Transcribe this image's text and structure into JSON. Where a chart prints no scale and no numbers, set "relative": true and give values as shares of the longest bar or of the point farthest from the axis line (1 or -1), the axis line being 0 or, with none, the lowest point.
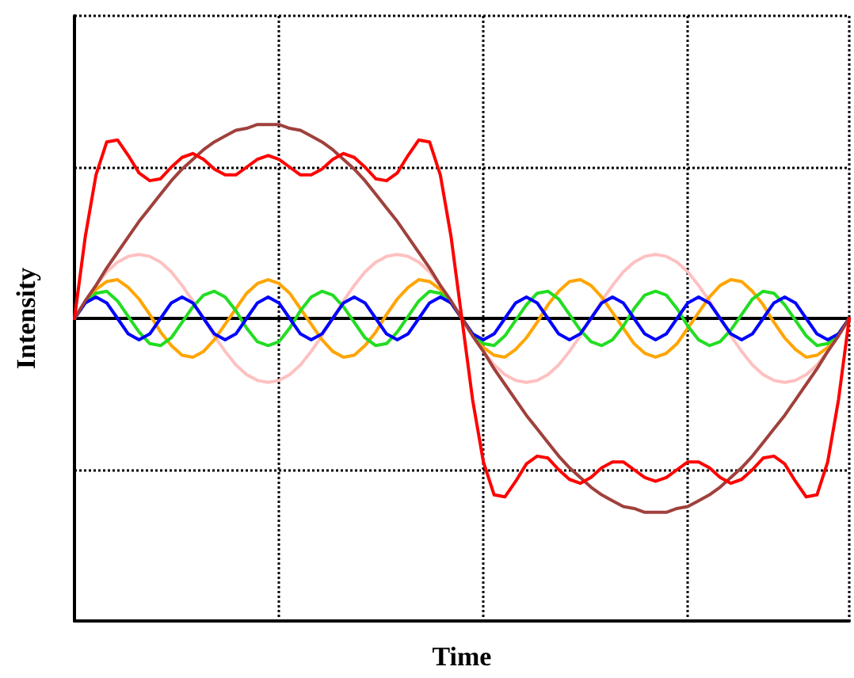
{
  "chart_data": {
    "type": "line",
    "relative": true,
    "xlabel": "Time",
    "ylabel": "Intensity",
    "grid": true,
    "marker": "none",
    "line_style": "solid",
    "categories": [
      null,
      null,
      null,
      null,
      null,
      null,
      null,
      null,
      null,
      null,
      null,
      null,
      null,
      null,
      null,
      null,
      null,
      null,
      null,
      null,
      null,
      null,
      null,
      null,
      null,
      null,
      null,
      null,
      null,
      null,
      null,
      null,
      null,
      null,
      null,
      null,
      null,
      null,
      null,
      null,
      null,
      null,
      null,
      null,
      null,
      null,
      null,
      null,
      null,
      null,
      null,
      null,
      null,
      null,
      null,
      null,
      null,
      null,
      null,
      null,
      null,
      null,
      null,
      null,
      null,
      null,
      null,
      null,
      null,
      null,
      null,
      null,
      null
    ],
    "series": [
      {
        "color": "#ffc0c0",
        "values": [
          0,
          0.09,
          0.17,
          0.24,
          0.29,
          0.32,
          0.33,
          0.32,
          0.29,
          0.24,
          0.17,
          0.09,
          0,
          -0.09,
          -0.17,
          -0.24,
          -0.29,
          -0.32,
          -0.33,
          -0.32,
          -0.29,
          -0.24,
          -0.17,
          -0.09,
          0,
          0.09,
          0.17,
          0.24,
          0.29,
          0.32,
          0.33,
          0.32,
          0.29,
          0.24,
          0.17,
          0.09,
          0,
          -0.09,
          -0.17,
          -0.24,
          -0.29,
          -0.32,
          -0.33,
          -0.32,
          -0.29,
          -0.24,
          -0.17,
          -0.09,
          0,
          0.09,
          0.17,
          0.24,
          0.29,
          0.32,
          0.33,
          0.32,
          0.29,
          0.24,
          0.17,
          0.09,
          0,
          -0.09,
          -0.17,
          -0.24,
          -0.29,
          -0.32,
          -0.33,
          -0.32,
          -0.29,
          -0.24,
          -0.17,
          -0.09,
          0
        ]
      },
      {
        "color": "#ffa500",
        "values": [
          0,
          0.08,
          0.15,
          0.19,
          0.2,
          0.16,
          0.1,
          0.02,
          -0.07,
          -0.14,
          -0.19,
          -0.2,
          -0.17,
          -0.11,
          -0.03,
          0.05,
          0.13,
          0.18,
          0.2,
          0.18,
          0.13,
          0.05,
          -0.03,
          -0.11,
          -0.17,
          -0.2,
          -0.19,
          -0.14,
          -0.07,
          0.02,
          0.1,
          0.16,
          0.2,
          0.19,
          0.15,
          0.08,
          0,
          -0.08,
          -0.15,
          -0.19,
          -0.2,
          -0.16,
          -0.1,
          -0.02,
          0.07,
          0.14,
          0.19,
          0.2,
          0.17,
          0.11,
          0.03,
          -0.05,
          -0.13,
          -0.18,
          -0.2,
          -0.18,
          -0.13,
          -0.05,
          0.03,
          0.11,
          0.17,
          0.2,
          0.19,
          0.14,
          0.07,
          -0.02,
          -0.1,
          -0.16,
          -0.2,
          -0.19,
          -0.15,
          -0.08,
          0
        ]
      },
      {
        "color": "#22dd22",
        "values": [
          0,
          0.08,
          0.13,
          0.14,
          0.09,
          0.01,
          -0.07,
          -0.13,
          -0.14,
          -0.1,
          -0.02,
          0.06,
          0.12,
          0.14,
          0.11,
          0.04,
          -0.05,
          -0.12,
          -0.14,
          -0.12,
          -0.05,
          0.04,
          0.11,
          0.14,
          0.12,
          0.06,
          -0.02,
          -0.1,
          -0.14,
          -0.13,
          -0.07,
          0.01,
          0.09,
          0.14,
          0.13,
          0.08,
          0,
          -0.08,
          -0.13,
          -0.14,
          -0.09,
          -0.01,
          0.07,
          0.13,
          0.14,
          0.1,
          0.02,
          -0.06,
          -0.12,
          -0.14,
          -0.11,
          -0.04,
          0.05,
          0.12,
          0.14,
          0.12,
          0.05,
          -0.04,
          -0.11,
          -0.14,
          -0.12,
          -0.06,
          0.02,
          0.1,
          0.14,
          0.13,
          0.07,
          -0.01,
          -0.09,
          -0.14,
          -0.13,
          -0.08,
          0
        ]
      },
      {
        "color": "#0000ff",
        "values": [
          0,
          0.08,
          0.11,
          0.08,
          0,
          -0.08,
          -0.11,
          -0.08,
          0,
          0.08,
          0.11,
          0.08,
          0,
          -0.08,
          -0.11,
          -0.08,
          0,
          0.08,
          0.11,
          0.08,
          0,
          -0.08,
          -0.11,
          -0.08,
          0,
          0.08,
          0.11,
          0.08,
          0,
          -0.08,
          -0.11,
          -0.08,
          0,
          0.08,
          0.11,
          0.08,
          0,
          -0.08,
          -0.11,
          -0.08,
          0,
          0.08,
          0.11,
          0.08,
          0,
          -0.08,
          -0.11,
          -0.08,
          0,
          0.08,
          0.11,
          0.08,
          0,
          -0.08,
          -0.11,
          -0.08,
          0,
          0.08,
          0.11,
          0.08,
          0,
          -0.08,
          -0.11,
          -0.08,
          0,
          0.08,
          0.11,
          0.08,
          0,
          -0.08,
          -0.11,
          -0.08,
          0
        ]
      },
      {
        "color": "#a0403c",
        "values": [
          0,
          0.09,
          0.17,
          0.26,
          0.34,
          0.42,
          0.5,
          0.57,
          0.64,
          0.71,
          0.77,
          0.82,
          0.87,
          0.91,
          0.94,
          0.97,
          0.98,
          1,
          1,
          1,
          0.98,
          0.97,
          0.94,
          0.91,
          0.87,
          0.82,
          0.77,
          0.71,
          0.64,
          0.57,
          0.5,
          0.42,
          0.34,
          0.26,
          0.17,
          0.09,
          0,
          -0.09,
          -0.17,
          -0.26,
          -0.34,
          -0.42,
          -0.5,
          -0.57,
          -0.64,
          -0.71,
          -0.77,
          -0.82,
          -0.87,
          -0.91,
          -0.94,
          -0.97,
          -0.98,
          -1,
          -1,
          -1,
          -0.98,
          -0.97,
          -0.94,
          -0.91,
          -0.87,
          -0.82,
          -0.77,
          -0.71,
          -0.64,
          -0.57,
          -0.5,
          -0.42,
          -0.34,
          -0.26,
          -0.17,
          -0.09,
          0
        ]
      },
      {
        "color": "#ff0000",
        "values": [
          0,
          0.42,
          0.74,
          0.91,
          0.92,
          0.84,
          0.75,
          0.71,
          0.72,
          0.78,
          0.83,
          0.85,
          0.82,
          0.77,
          0.74,
          0.74,
          0.78,
          0.82,
          0.84,
          0.82,
          0.78,
          0.74,
          0.74,
          0.77,
          0.82,
          0.85,
          0.83,
          0.78,
          0.72,
          0.71,
          0.75,
          0.84,
          0.92,
          0.91,
          0.74,
          0.42,
          0,
          -0.42,
          -0.74,
          -0.91,
          -0.92,
          -0.84,
          -0.75,
          -0.71,
          -0.72,
          -0.78,
          -0.83,
          -0.85,
          -0.82,
          -0.77,
          -0.74,
          -0.74,
          -0.78,
          -0.82,
          -0.84,
          -0.82,
          -0.78,
          -0.74,
          -0.74,
          -0.77,
          -0.82,
          -0.85,
          -0.83,
          -0.78,
          -0.72,
          -0.71,
          -0.75,
          -0.84,
          -0.92,
          -0.91,
          -0.74,
          -0.42,
          0
        ]
      }
    ]
  }
}
